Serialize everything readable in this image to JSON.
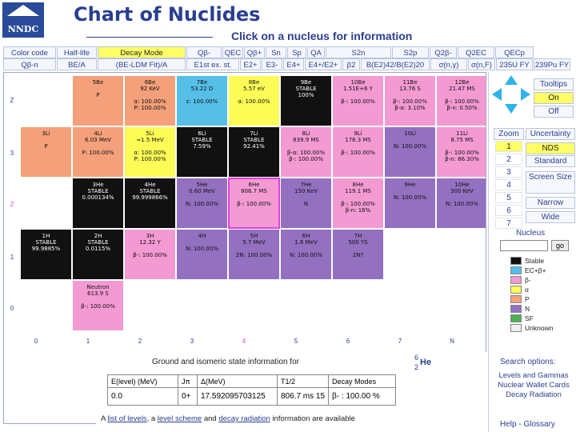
{
  "header": {
    "logo_text": "NNDC",
    "title": "Chart of Nuclides",
    "instruction": "Click on a nucleus for information"
  },
  "modebar": {
    "row1": [
      "Color code",
      "Half-life",
      "Decay Mode",
      "Qβ-",
      "QEC",
      "Qβ+",
      "Sn",
      "Sp",
      "QA",
      "S2n",
      "S2p",
      "Q2β-",
      "Q2EC",
      "QECp"
    ],
    "row2": [
      "Qβ-n",
      "BE/A",
      "(BE-LDM Fit)/A",
      "E1st ex. st.",
      "E2+",
      "E3-",
      "E4+",
      "E4+/E2+",
      "β2",
      "B(E2)42/B(E2)20",
      "σ(n,γ)",
      "σ(n,F)",
      "235U FY",
      "239Pu FY"
    ],
    "active": "Decay Mode"
  },
  "chart": {
    "x_labels": [
      "0",
      "1",
      "2",
      "3",
      "4",
      "5",
      "6",
      "7",
      "N"
    ],
    "y_labels": [
      "Z",
      "3",
      "2",
      "1",
      "0"
    ],
    "highlight_n": "4",
    "highlight_z": "2",
    "cells": [
      {
        "n": 1,
        "z": 4,
        "name": "5Be",
        "lines": [
          "",
          "P"
        ],
        "color": "#f4a07a"
      },
      {
        "n": 2,
        "z": 4,
        "name": "6Be",
        "lines": [
          "92 KeV",
          "",
          "α: 100.00%",
          "P: 100.00%"
        ],
        "color": "#f4a07a"
      },
      {
        "n": 3,
        "z": 4,
        "name": "7Be",
        "lines": [
          "53.22 D",
          "",
          "ε: 100.00%"
        ],
        "color": "#55bfe8"
      },
      {
        "n": 4,
        "z": 4,
        "name": "8Be",
        "lines": [
          "5.57 eV",
          "",
          "α: 100.00%"
        ],
        "color": "#fdfc57"
      },
      {
        "n": 5,
        "z": 4,
        "name": "9Be",
        "lines": [
          "STABLE",
          "100%"
        ],
        "color": "#111111"
      },
      {
        "n": 6,
        "z": 4,
        "name": "10Be",
        "lines": [
          "1.51E+6 Y",
          "",
          "β-: 100.00%"
        ],
        "color": "#f39ad3"
      },
      {
        "n": 7,
        "z": 4,
        "name": "11Be",
        "lines": [
          "13.76 S",
          "",
          "β-: 100.00%",
          "β-α: 3.10%"
        ],
        "color": "#f39ad3"
      },
      {
        "n": 8,
        "z": 4,
        "name": "12Be",
        "lines": [
          "21.47 MS",
          "",
          "β-: 100.00%",
          "β-n: 0.50%"
        ],
        "color": "#f39ad3"
      },
      {
        "n": 0,
        "z": 3,
        "name": "3Li",
        "lines": [
          "",
          "P"
        ],
        "color": "#f4a07a"
      },
      {
        "n": 1,
        "z": 3,
        "name": "4Li",
        "lines": [
          "6.03 MeV",
          "",
          "P: 100.00%"
        ],
        "color": "#f4a07a"
      },
      {
        "n": 2,
        "z": 3,
        "name": "5Li",
        "lines": [
          "≈1.5 MeV",
          "",
          "α: 100.00%",
          "P: 100.00%"
        ],
        "color": "#fdfc57"
      },
      {
        "n": 3,
        "z": 3,
        "name": "6Li",
        "lines": [
          "STABLE",
          "7.59%"
        ],
        "color": "#111111"
      },
      {
        "n": 4,
        "z": 3,
        "name": "7Li",
        "lines": [
          "STABLE",
          "92.41%"
        ],
        "color": "#111111"
      },
      {
        "n": 5,
        "z": 3,
        "name": "8Li",
        "lines": [
          "839.9 MS",
          "",
          "β-α: 100.00%",
          "β-: 100.00%"
        ],
        "color": "#f39ad3"
      },
      {
        "n": 6,
        "z": 3,
        "name": "9Li",
        "lines": [
          "178.3 MS",
          "",
          "β-: 100.00%"
        ],
        "color": "#f39ad3"
      },
      {
        "n": 7,
        "z": 3,
        "name": "10Li",
        "lines": [
          "",
          "N: 100.00%"
        ],
        "color": "#9370c0"
      },
      {
        "n": 8,
        "z": 3,
        "name": "11Li",
        "lines": [
          "8.75 MS",
          "",
          "β-: 100.00%",
          "β-n: 86.30%"
        ],
        "color": "#f39ad3"
      },
      {
        "n": 1,
        "z": 2,
        "name": "3He",
        "lines": [
          "STABLE",
          "0.000134%"
        ],
        "color": "#111111"
      },
      {
        "n": 2,
        "z": 2,
        "name": "4He",
        "lines": [
          "STABLE",
          "99.999866%"
        ],
        "color": "#111111"
      },
      {
        "n": 3,
        "z": 2,
        "name": "5He",
        "lines": [
          "0.60 MeV",
          "",
          "N: 100.00%"
        ],
        "color": "#9370c0"
      },
      {
        "n": 4,
        "z": 2,
        "name": "6He",
        "lines": [
          "806.7 MS",
          "",
          "β-: 100.00%"
        ],
        "color": "#f39ad3",
        "selected": true
      },
      {
        "n": 5,
        "z": 2,
        "name": "7He",
        "lines": [
          "150 KeV",
          "",
          "N"
        ],
        "color": "#9370c0"
      },
      {
        "n": 6,
        "z": 2,
        "name": "8He",
        "lines": [
          "119.1 MS",
          "",
          "β-: 100.00%",
          "β-n: 16%"
        ],
        "color": "#f39ad3"
      },
      {
        "n": 7,
        "z": 2,
        "name": "9He",
        "lines": [
          "",
          "N: 100.00%"
        ],
        "color": "#9370c0"
      },
      {
        "n": 8,
        "z": 2,
        "name": "10He",
        "lines": [
          "300 KeV",
          "",
          "N: 100.00%"
        ],
        "color": "#9370c0"
      },
      {
        "n": 0,
        "z": 1,
        "name": "1H",
        "lines": [
          "STABLE",
          "99.9885%"
        ],
        "color": "#111111"
      },
      {
        "n": 1,
        "z": 1,
        "name": "2H",
        "lines": [
          "STABLE",
          "0.0115%"
        ],
        "color": "#111111"
      },
      {
        "n": 2,
        "z": 1,
        "name": "3H",
        "lines": [
          "12.32 Y",
          "",
          "β-: 100.00%"
        ],
        "color": "#f39ad3"
      },
      {
        "n": 3,
        "z": 1,
        "name": "4H",
        "lines": [
          "",
          "N: 100.00%"
        ],
        "color": "#9370c0"
      },
      {
        "n": 4,
        "z": 1,
        "name": "5H",
        "lines": [
          "5.7 MeV",
          "",
          "2N: 100.00%"
        ],
        "color": "#9370c0"
      },
      {
        "n": 5,
        "z": 1,
        "name": "6H",
        "lines": [
          "1.6 MeV",
          "",
          "N: 100.00%"
        ],
        "color": "#9370c0"
      },
      {
        "n": 6,
        "z": 1,
        "name": "7H",
        "lines": [
          "500 YS",
          "",
          "2N?"
        ],
        "color": "#9370c0"
      },
      {
        "n": 1,
        "z": 0,
        "name": "Neutron",
        "lines": [
          "613.9 S",
          "",
          "β-: 100.00%"
        ],
        "color": "#f39ad3"
      }
    ]
  },
  "info": {
    "title": "Ground and isomeric state information for",
    "nucleus_mass": "6",
    "nucleus_z": "2",
    "nucleus_symbol": "He",
    "headers": [
      "E(level) (MeV)",
      "Jπ",
      "Δ(MeV)",
      "T1/2",
      "Decay Modes"
    ],
    "row": [
      "0.0",
      "0+",
      "17.592095703125",
      "806.7 ms 15",
      "β- : 100.00 %"
    ],
    "footer_prefix": "A",
    "footer_link1": "list of levels",
    "footer_sep1": ", a",
    "footer_link2": "level scheme",
    "footer_sep2": "and",
    "footer_link3": "decay radiation",
    "footer_suffix": "information are available"
  },
  "right": {
    "tooltips_label": "Tooltips",
    "on_label": "On",
    "off_label": "Off",
    "zoom_label": "Zoom",
    "zoom_levels": [
      "1",
      "2",
      "3",
      "4",
      "5",
      "6",
      "7"
    ],
    "zoom_active": "1",
    "uncertainty_label": "Uncertainty",
    "nds_label": "NDS",
    "standard_label": "Standard",
    "screen_size_label": "Screen Size",
    "narrow_label": "Narrow",
    "wide_label": "Wide",
    "nucleus_label": "Nucleus",
    "nucleus_placeholder": "",
    "go_label": "go",
    "legend": [
      {
        "label": "Stable",
        "color": "#111111"
      },
      {
        "label": "EC+β+",
        "color": "#55bfe8"
      },
      {
        "label": "β-",
        "color": "#f39ad3"
      },
      {
        "label": "α",
        "color": "#fdfc57"
      },
      {
        "label": "P",
        "color": "#f4a07a"
      },
      {
        "label": "N",
        "color": "#9370c0"
      },
      {
        "label": "SF",
        "color": "#4caf50"
      },
      {
        "label": "Unknown",
        "color": "#eeeeee"
      }
    ],
    "search_label": "Search options:",
    "search_links": [
      "Levels and Gammas",
      "Nuclear Wallet Cards",
      "Decay Radiation"
    ],
    "help_label": "Help - Glossary"
  }
}
